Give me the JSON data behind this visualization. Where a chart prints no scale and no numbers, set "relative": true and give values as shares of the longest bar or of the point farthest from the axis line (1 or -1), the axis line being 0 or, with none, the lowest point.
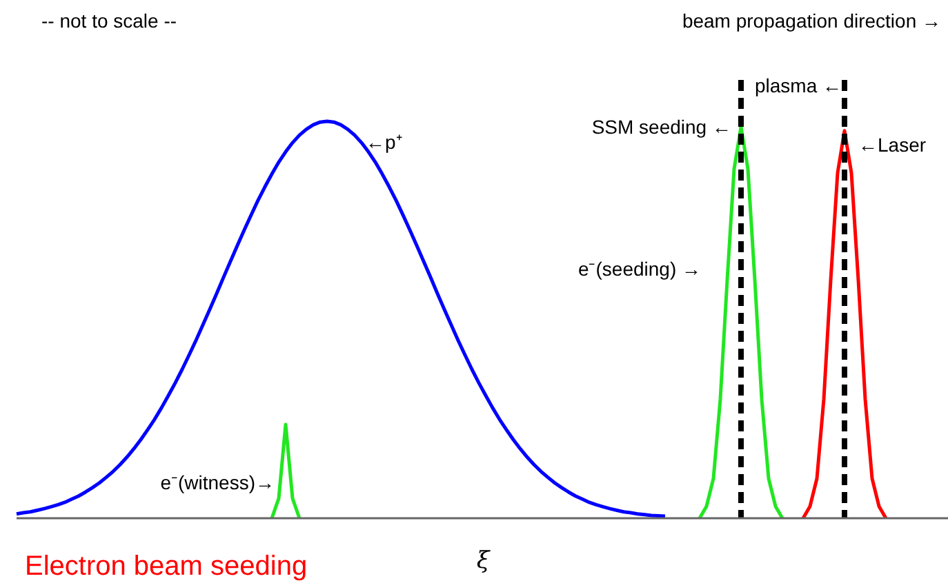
{
  "chart_data": {
    "type": "line",
    "relative": true,
    "xlabel": "ξ",
    "line_style": "solid",
    "categories": [
      null,
      null,
      null,
      null,
      null,
      null,
      null,
      null,
      null,
      null,
      null,
      null,
      null,
      null,
      null,
      null,
      null,
      null,
      null,
      null,
      null,
      null,
      null,
      null,
      null,
      null,
      null,
      null,
      null,
      null,
      null,
      null,
      null,
      null,
      null,
      null,
      null,
      null,
      null,
      null,
      null,
      null,
      null,
      null,
      null,
      null,
      null,
      null,
      null,
      null,
      null,
      null,
      null,
      null,
      null,
      null,
      null,
      null,
      null,
      null,
      null,
      null,
      null,
      null,
      null,
      null,
      null,
      null,
      null,
      null,
      null,
      null,
      null,
      null,
      null,
      null,
      null,
      null,
      null,
      null,
      null,
      null,
      null,
      null,
      null,
      null,
      null,
      null,
      null,
      null,
      null,
      null,
      null,
      null,
      null,
      null,
      null,
      null,
      null,
      null,
      null,
      null,
      null,
      null,
      null,
      null,
      null,
      null,
      null,
      null,
      null,
      null,
      null,
      null,
      null,
      null,
      null,
      null,
      null,
      null,
      null,
      null,
      null,
      null,
      null,
      null,
      null,
      null,
      null,
      null,
      null,
      null,
      null,
      null,
      null,
      null
    ],
    "series": [
      {
        "color": "#0000ff",
        "values": [
          0.011,
          0.014,
          0.016,
          0.02,
          0.024,
          0.029,
          0.034,
          0.04,
          0.048,
          0.056,
          0.066,
          0.077,
          0.089,
          0.103,
          0.118,
          0.135,
          0.154,
          0.175,
          0.198,
          0.223,
          0.249,
          0.278,
          0.309,
          0.341,
          0.375,
          0.411,
          0.448,
          0.487,
          0.526,
          0.566,
          0.607,
          0.647,
          0.687,
          0.726,
          0.764,
          0.801,
          0.835,
          0.867,
          0.897,
          0.923,
          0.946,
          0.965,
          0.98,
          0.991,
          0.998,
          1,
          0.998,
          0.991,
          0.98,
          0.965,
          0.946,
          0.923,
          0.897,
          0.867,
          0.835,
          0.801,
          0.764,
          0.726,
          0.687,
          0.647,
          0.607,
          0.566,
          0.526,
          0.487,
          0.448,
          0.411,
          0.375,
          0.341,
          0.309,
          0.278,
          0.249,
          0.223,
          0.198,
          0.175,
          0.154,
          0.135,
          0.118,
          0.103,
          0.089,
          0.077,
          0.066,
          0.056,
          0.048,
          0.04,
          0.034,
          0.029,
          0.024,
          0.02,
          0.016,
          0.014,
          0.011,
          0.009,
          0.007,
          0.006,
          0.005,
          null,
          null,
          null,
          null,
          null,
          null,
          null,
          null,
          null,
          null,
          null,
          null,
          null,
          null,
          null,
          null,
          null,
          null,
          null,
          null,
          null,
          null,
          null,
          null,
          null,
          null,
          null,
          null,
          null,
          null,
          null,
          null,
          null,
          null,
          null,
          null,
          null,
          null,
          null,
          null,
          null
        ]
      },
      {
        "color": "#22e622",
        "values": [
          null,
          null,
          null,
          null,
          null,
          null,
          null,
          null,
          null,
          null,
          null,
          null,
          null,
          null,
          null,
          null,
          null,
          null,
          null,
          null,
          null,
          null,
          null,
          null,
          null,
          null,
          null,
          null,
          null,
          null,
          null,
          null,
          null,
          null,
          null,
          null,
          null,
          0,
          0.05,
          0.236,
          0.05,
          0,
          null,
          null,
          null,
          null,
          null,
          null,
          null,
          null,
          null,
          null,
          null,
          null,
          null,
          null,
          null,
          null,
          null,
          null,
          null,
          null,
          null,
          null,
          null,
          null,
          null,
          null,
          null,
          null,
          null,
          null,
          null,
          null,
          null,
          null,
          null,
          null,
          null,
          null,
          null,
          null,
          null,
          null,
          null,
          null,
          null,
          null,
          null,
          null,
          null,
          null,
          null,
          null,
          null,
          null,
          null,
          null,
          null,
          null,
          null,
          null,
          null,
          null,
          null,
          null,
          null,
          null,
          null,
          null,
          null,
          null,
          null,
          null,
          null,
          null,
          null,
          null,
          null,
          null,
          null,
          null,
          null,
          null,
          null,
          null,
          null,
          null,
          null,
          null,
          null,
          null,
          null,
          null,
          null,
          null
        ]
      },
      {
        "color": "#22e622",
        "values": [
          null,
          null,
          null,
          null,
          null,
          null,
          null,
          null,
          null,
          null,
          null,
          null,
          null,
          null,
          null,
          null,
          null,
          null,
          null,
          null,
          null,
          null,
          null,
          null,
          null,
          null,
          null,
          null,
          null,
          null,
          null,
          null,
          null,
          null,
          null,
          null,
          null,
          null,
          null,
          null,
          null,
          null,
          null,
          null,
          null,
          null,
          null,
          null,
          null,
          null,
          null,
          null,
          null,
          null,
          null,
          null,
          null,
          null,
          null,
          null,
          null,
          null,
          null,
          null,
          null,
          null,
          null,
          null,
          null,
          null,
          null,
          null,
          null,
          null,
          null,
          null,
          null,
          null,
          null,
          null,
          null,
          null,
          null,
          null,
          null,
          null,
          null,
          null,
          null,
          null,
          null,
          null,
          null,
          null,
          null,
          null,
          null,
          null,
          null,
          0,
          0.03,
          0.1,
          0.3,
          0.6,
          0.88,
          0.986,
          0.88,
          0.6,
          0.3,
          0.1,
          0.03,
          0,
          null,
          null,
          null,
          null,
          null,
          null,
          null,
          null,
          null,
          null,
          null,
          null,
          null,
          null,
          null,
          null,
          null,
          null,
          null,
          null,
          null,
          null,
          null,
          null
        ]
      },
      {
        "color": "#ff0000",
        "values": [
          null,
          null,
          null,
          null,
          null,
          null,
          null,
          null,
          null,
          null,
          null,
          null,
          null,
          null,
          null,
          null,
          null,
          null,
          null,
          null,
          null,
          null,
          null,
          null,
          null,
          null,
          null,
          null,
          null,
          null,
          null,
          null,
          null,
          null,
          null,
          null,
          null,
          null,
          null,
          null,
          null,
          null,
          null,
          null,
          null,
          null,
          null,
          null,
          null,
          null,
          null,
          null,
          null,
          null,
          null,
          null,
          null,
          null,
          null,
          null,
          null,
          null,
          null,
          null,
          null,
          null,
          null,
          null,
          null,
          null,
          null,
          null,
          null,
          null,
          null,
          null,
          null,
          null,
          null,
          null,
          null,
          null,
          null,
          null,
          null,
          null,
          null,
          null,
          null,
          null,
          null,
          null,
          null,
          null,
          null,
          null,
          null,
          null,
          null,
          null,
          null,
          null,
          null,
          null,
          null,
          null,
          null,
          null,
          null,
          null,
          null,
          null,
          null,
          null,
          0,
          0.03,
          0.1,
          0.3,
          0.6,
          0.87,
          0.976,
          0.87,
          0.6,
          0.3,
          0.1,
          0.03,
          0,
          null,
          null,
          null,
          null,
          null,
          null,
          null,
          null,
          null
        ]
      }
    ],
    "annotations": [
      "-- not to scale --",
      "beam propagation direction →",
      "Electron beam seeding",
      "←p⁺",
      "SSM seeding ←",
      "e⁻(seeding) →",
      "e⁻(witness)→",
      "←Laser",
      "plasma ←"
    ]
  }
}
